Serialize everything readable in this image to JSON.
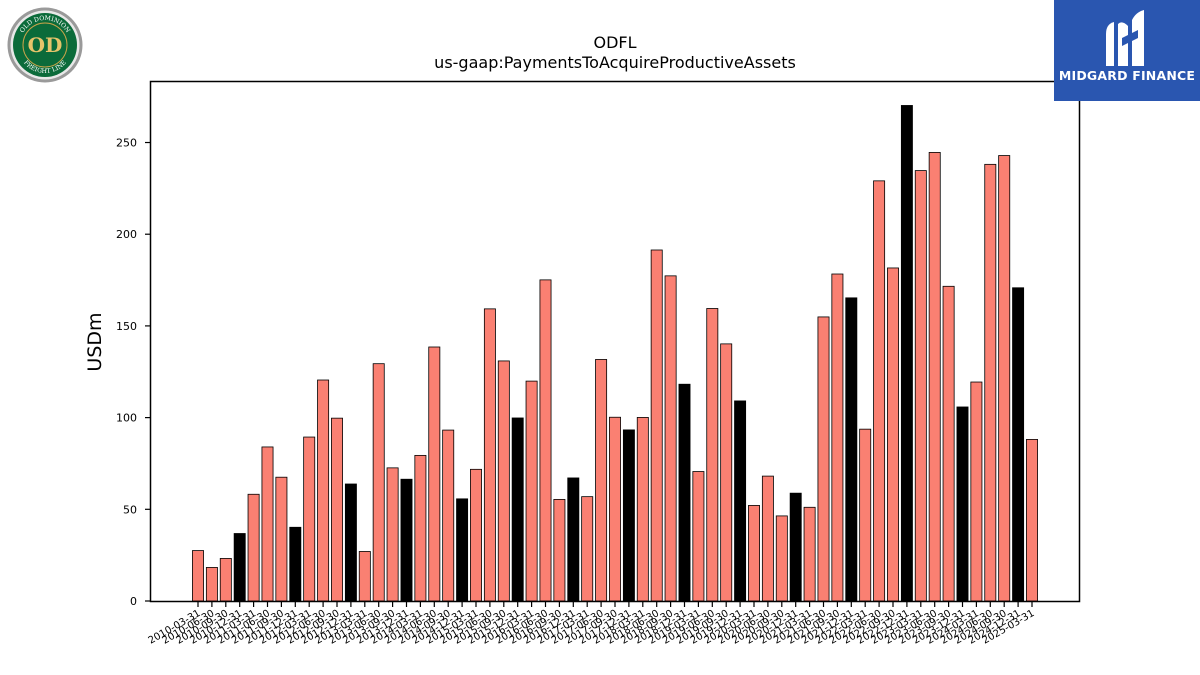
{
  "chart_data": {
    "type": "bar",
    "title": "ODFL",
    "subtitle": "us-gaap:PaymentsToAcquireProductiveAssets",
    "xlabel": "",
    "ylabel": "USDm",
    "ylim": [
      0,
      283
    ],
    "yticks": [
      0,
      50,
      100,
      150,
      200,
      250
    ],
    "grid": false,
    "legend": "none",
    "colors": {
      "regular": "#fa8072",
      "annual": "#000000",
      "edge": "#000000"
    },
    "categories": [
      "2010-03-31",
      "2010-06-30",
      "2010-09-30",
      "2010-12-31",
      "2011-03-31",
      "2011-06-30",
      "2011-09-30",
      "2011-12-31",
      "2012-03-31",
      "2012-06-30",
      "2012-09-30",
      "2012-12-31",
      "2013-03-31",
      "2013-06-30",
      "2013-09-30",
      "2013-12-31",
      "2014-03-31",
      "2014-06-30",
      "2014-09-30",
      "2014-12-31",
      "2015-03-31",
      "2015-06-30",
      "2015-09-30",
      "2015-12-31",
      "2016-03-31",
      "2016-06-30",
      "2016-09-30",
      "2016-12-31",
      "2017-03-31",
      "2017-06-30",
      "2017-09-30",
      "2017-12-31",
      "2018-03-31",
      "2018-06-30",
      "2018-09-30",
      "2018-12-31",
      "2019-03-31",
      "2019-06-30",
      "2019-09-30",
      "2019-12-31",
      "2020-03-31",
      "2020-06-30",
      "2020-09-30",
      "2020-12-31",
      "2021-03-31",
      "2021-06-30",
      "2021-09-30",
      "2021-12-31",
      "2022-03-31",
      "2022-06-30",
      "2022-09-30",
      "2022-12-31",
      "2023-03-31",
      "2023-06-30",
      "2023-09-30",
      "2023-12-31",
      "2024-03-31",
      "2024-06-30",
      "2024-09-30",
      "2024-12-31",
      "2025-03-31"
    ],
    "values": [
      27.5,
      18.3,
      23.2,
      36.8,
      58.2,
      84.0,
      67.5,
      40.2,
      89.4,
      120.5,
      99.7,
      63.8,
      27.0,
      129.4,
      72.6,
      66.4,
      79.4,
      138.5,
      93.2,
      55.7,
      71.8,
      159.3,
      130.9,
      99.8,
      119.9,
      175.1,
      55.4,
      67.1,
      56.9,
      131.7,
      100.2,
      93.3,
      100.1,
      191.4,
      177.3,
      118.2,
      70.6,
      159.5,
      140.2,
      109.1,
      52.1,
      68.1,
      46.4,
      58.8,
      51.1,
      154.9,
      178.3,
      165.3,
      93.7,
      229.1,
      181.6,
      270.2,
      234.7,
      244.6,
      171.6,
      105.8,
      119.4,
      238.1,
      242.9,
      170.8,
      88.1
    ],
    "annual_flags": [
      0,
      0,
      0,
      1,
      0,
      0,
      0,
      1,
      0,
      0,
      0,
      1,
      0,
      0,
      0,
      1,
      0,
      0,
      0,
      1,
      0,
      0,
      0,
      1,
      0,
      0,
      0,
      1,
      0,
      0,
      0,
      1,
      0,
      0,
      0,
      1,
      0,
      0,
      0,
      1,
      0,
      0,
      0,
      1,
      0,
      0,
      0,
      1,
      0,
      0,
      0,
      1,
      0,
      0,
      0,
      1,
      0,
      0,
      0,
      1,
      0
    ]
  },
  "logos": {
    "left": {
      "name": "old-dominion-freight-line-logo",
      "text_top": "OLD DOMINION",
      "text_bottom": "FREIGHT LINE",
      "monogram": "OD"
    },
    "right": {
      "name": "midgard-finance-logo",
      "text": "MIDGARD FINANCE",
      "color": "#2a56b0"
    }
  }
}
